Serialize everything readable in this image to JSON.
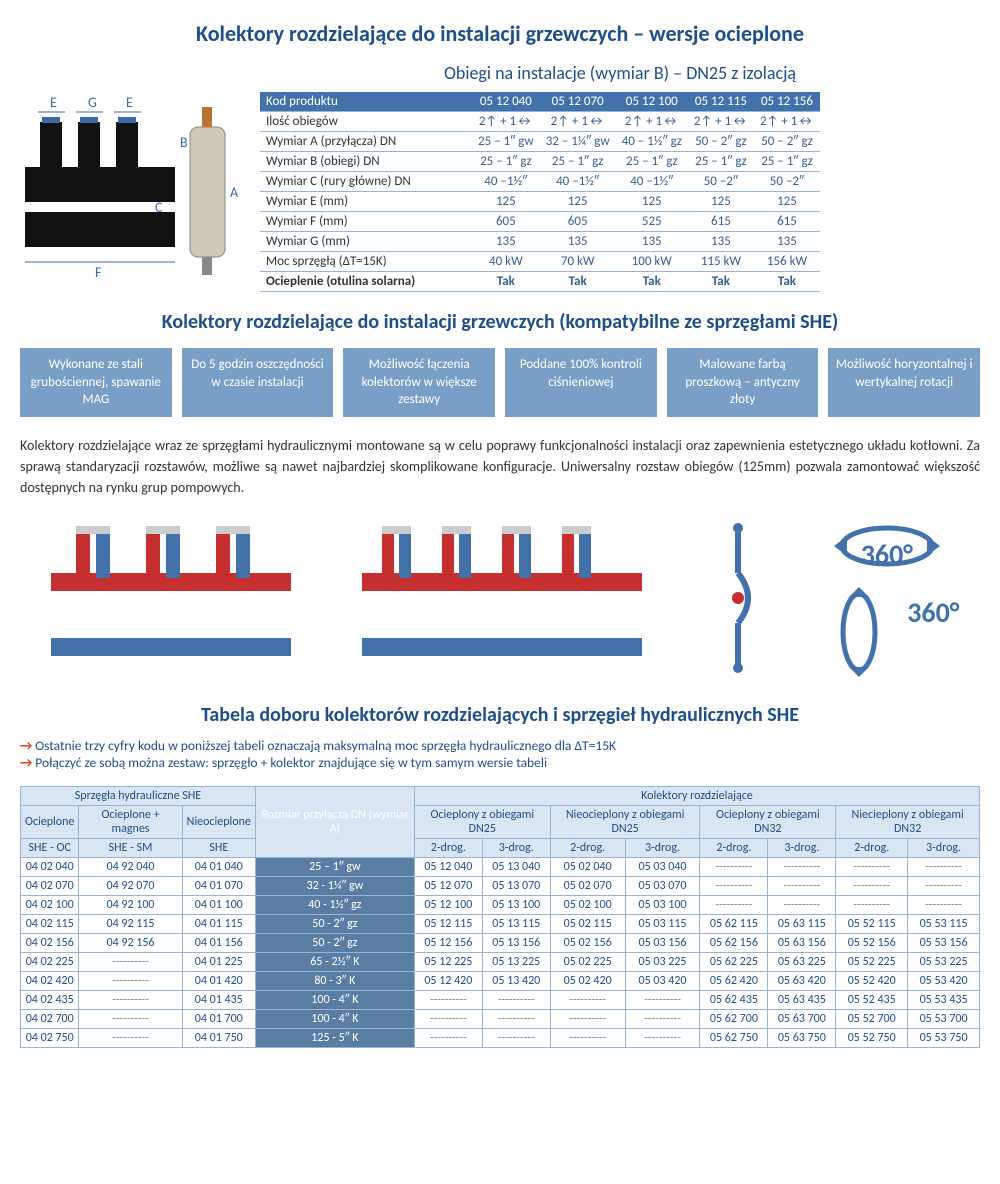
{
  "titles": {
    "main": "Kolektory rozdzielające do instalacji grzewczych – wersje ocieplone",
    "sub1": "Obiegi na instalacje (wymiar B) – DN25 z izolacją",
    "title2": "Kolektory rozdzielające do instalacji grzewczych (kompatybilne ze sprzęgłami SHE)",
    "title3": "Tabela doboru kolektorów rozdzielających i sprzęgieł hydraulicznych SHE"
  },
  "spec_table": {
    "header": [
      "Kod produktu",
      "05 12 040",
      "05 12 070",
      "05 12 100",
      "05 12 115",
      "05 12 156"
    ],
    "rows": [
      [
        "Ilość obiegów",
        "2↑ + 1↔",
        "2↑ + 1↔",
        "2↑ + 1↔",
        "2↑ + 1↔",
        "2↑ + 1↔"
      ],
      [
        "Wymiar A (przyłącza) DN",
        "25 – 1″ gw",
        "32 – 1¼″ gw",
        "40 – 1½″ gz",
        "50 – 2″ gz",
        "50 – 2″ gz"
      ],
      [
        "Wymiar B (obiegi) DN",
        "25 – 1″ gz",
        "25 – 1″ gz",
        "25 – 1″ gz",
        "25 – 1″ gz",
        "25 – 1″ gz"
      ],
      [
        "Wymiar C (rury główne) DN",
        "40 –1½″",
        "40 –1½″",
        "40 –1½″",
        "50 –2″",
        "50 –2″"
      ],
      [
        "Wymiar E (mm)",
        "125",
        "125",
        "125",
        "125",
        "125"
      ],
      [
        "Wymiar F (mm)",
        "605",
        "605",
        "525",
        "615",
        "615"
      ],
      [
        "Wymiar G (mm)",
        "135",
        "135",
        "135",
        "135",
        "135"
      ],
      [
        "Moc sprzęgłą (ΔT=15K)",
        "40 kW",
        "70 kW",
        "100 kW",
        "115 kW",
        "156 kW"
      ]
    ],
    "bold_row": [
      "Ocieplenie (otulina solarna)",
      "Tak",
      "Tak",
      "Tak",
      "Tak",
      "Tak"
    ]
  },
  "features": [
    "Wykonane ze stali grubościennej, spawanie MAG",
    "Do 5 godzin oszczędności w czasie instalacji",
    "Możliwość łączenia kolektorów w większe zestawy",
    "Poddane 100% kontroli ciśnieniowej",
    "Malowane farbą proszkową – antyczny złoty",
    "Możliwość horyzontalnej i wertykalnej rotacji"
  ],
  "body_text": "Kolektory rozdzielające wraz ze sprzęgłami hydraulicznymi montowane są w celu poprawy funkcjonalności instalacji oraz zapewnienia estetycznego układu kotłowni. Za sprawą standaryzacji rozstawów, możliwe są nawet najbardziej skomplikowane konfiguracje. Uniwersalny rozstaw obiegów (125mm) pozwala zamontować większość dostępnych na rynku grup pompowych.",
  "notes": [
    "Ostatnie trzy cyfry kodu w poniższej tabeli oznaczają maksymalną moc sprzęgła hydraulicznego dla ΔT=15K",
    "Połączyć ze sobą można zestaw:  sprzęgło + kolektor znajdujące się w tym samym wersie tabeli"
  ],
  "big_table": {
    "top_groups": [
      {
        "label": "Sprzęgła hydrauliczne SHE",
        "span": 3
      },
      {
        "label": "Rozmiar przyłącza DN (wymiar A)",
        "span": 1,
        "rowspan": 3,
        "dark": true
      },
      {
        "label": "Kolektory rozdzielające",
        "span": 8
      }
    ],
    "mid_groups_left": [
      "Ocieplone",
      "Ocieplone  + magnes",
      "Nieocieplone"
    ],
    "mid_groups_right": [
      {
        "label": "Ocieplony z obiegami DN25",
        "span": 2
      },
      {
        "label": "Nieocieplony z obiegami DN25",
        "span": 2
      },
      {
        "label": "Ocieplony z obiegami DN32",
        "span": 2
      },
      {
        "label": "Niecieplony z obiegami DN32",
        "span": 2
      }
    ],
    "sub_left": [
      "SHE - OC",
      "SHE - SM",
      "SHE"
    ],
    "sub_right": [
      "2-drog.",
      "3-drog.",
      "2-drog.",
      "3-drog.",
      "2-drog.",
      "3-drog.",
      "2-drog.",
      "3-drog."
    ],
    "rows": [
      [
        "04 02 040",
        "04 92 040",
        "04 01 040",
        "25 – 1″ gw",
        "05 12 040",
        "05 13 040",
        "05 02 040",
        "05 03 040",
        "----------",
        "----------",
        "----------",
        "----------"
      ],
      [
        "04 02 070",
        "04 92 070",
        "04 01 070",
        "32 - 1¼″ gw",
        "05 12 070",
        "05 13 070",
        "05 02 070",
        "05 03 070",
        "----------",
        "----------",
        "----------",
        "----------"
      ],
      [
        "04 02 100",
        "04 92 100",
        "04 01 100",
        "40 - 1½″ gz",
        "05 12 100",
        "05 13 100",
        "05 02 100",
        "05 03 100",
        "----------",
        "----------",
        "----------",
        "----------"
      ],
      [
        "04 02 115",
        "04 92 115",
        "04 01 115",
        "50 - 2″ gz",
        "05 12 115",
        "05 13 115",
        "05 02 115",
        "05 03 115",
        "05 62 115",
        "05 63 115",
        "05 52 115",
        "05 53 115"
      ],
      [
        "04 02 156",
        "04 92 156",
        "04 01 156",
        "50 - 2″ gz",
        "05 12 156",
        "05 13 156",
        "05 02 156",
        "05 03 156",
        "05 62 156",
        "05 63 156",
        "05 52 156",
        "05 53 156"
      ],
      [
        "04 02 225",
        "----------",
        "04 01 225",
        "65 - 2½″ K",
        "05 12 225",
        "05 13 225",
        "05 02 225",
        "05 03 225",
        "05 62 225",
        "05 63 225",
        "05 52 225",
        "05 53 225"
      ],
      [
        "04 02 420",
        "----------",
        "04 01 420",
        "80 - 3″ K",
        "05 12 420",
        "05 13 420",
        "05 02 420",
        "05 03 420",
        "05 62 420",
        "05 63 420",
        "05 52 420",
        "05 53 420"
      ],
      [
        "04 02 435",
        "----------",
        "04 01 435",
        "100 - 4″ K",
        "----------",
        "----------",
        "----------",
        "----------",
        "05 62 435",
        "05 63 435",
        "05 52 435",
        "05 53 435"
      ],
      [
        "04 02 700",
        "----------",
        "04 01 700",
        "100 - 4″ K",
        "----------",
        "----------",
        "----------",
        "----------",
        "05 62 700",
        "05 63 700",
        "05 52 700",
        "05 53 700"
      ],
      [
        "04 02 750",
        "----------",
        "04 01 750",
        "125 - 5″ K",
        "----------",
        "----------",
        "----------",
        "----------",
        "05 62 750",
        "05 63 750",
        "05 52 750",
        "05 53 750"
      ]
    ]
  },
  "diagram_labels": {
    "E": "E",
    "G": "G",
    "B": "B",
    "C": "C",
    "A": "A",
    "F": "F"
  },
  "rot_label": "360°",
  "colors": {
    "primary": "#1f4e8c",
    "header_bg": "#4372aa",
    "feature_bg": "#7a9fc7",
    "border": "#96b4d6",
    "light_bg": "#d9e5f2",
    "dark_cell": "#5a7da3",
    "red": "#c52f2f",
    "blue_pipe": "#4372aa"
  }
}
